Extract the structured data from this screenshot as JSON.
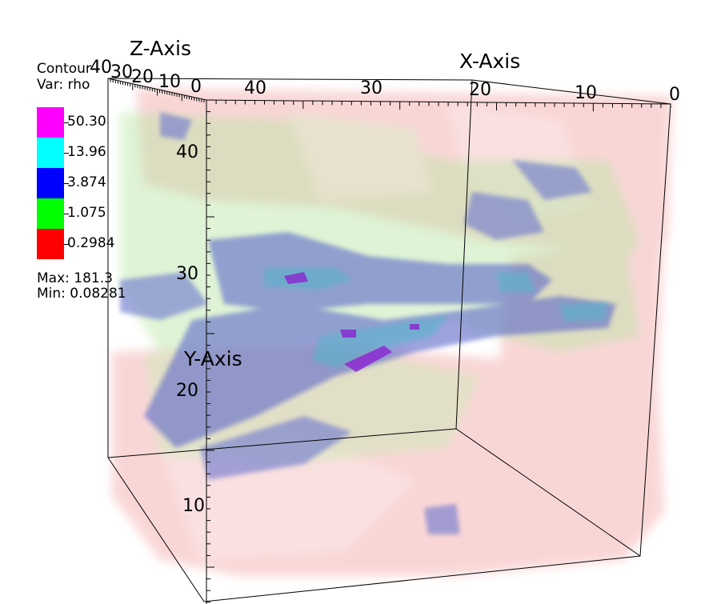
{
  "legend": {
    "title": "Contour",
    "var": "Var: rho",
    "levels": [
      {
        "label": "50.30",
        "color": "#ff00ff"
      },
      {
        "label": "13.96",
        "color": "#00ffff"
      },
      {
        "label": "3.874",
        "color": "#0000ff"
      },
      {
        "label": "1.075",
        "color": "#00ff00"
      },
      {
        "label": "0.2984",
        "color": "#ff0000"
      }
    ],
    "max": "Max:  181.3",
    "min": "Min:  0.08281"
  },
  "axes": {
    "x": {
      "title": "X-Axis",
      "ticks": [
        "40",
        "30",
        "20",
        "10",
        "0"
      ]
    },
    "y": {
      "title": "Y-Axis",
      "ticks": [
        "40",
        "30",
        "20",
        "10"
      ]
    },
    "z": {
      "title": "Z-Axis",
      "ticks": [
        "40",
        "30",
        "20",
        "10",
        "0"
      ]
    }
  },
  "colors": {
    "red_surface": "#f3a6a6",
    "green_surface": "#b9e6a6",
    "blue_surface": "#5c68c9",
    "cyan_surface": "#59b3c9",
    "magenta_surface": "#8a2bd0"
  }
}
